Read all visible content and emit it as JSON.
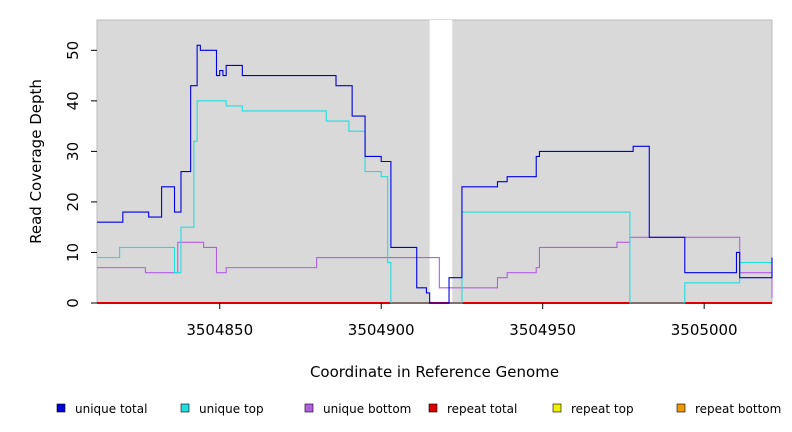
{
  "chart_data": {
    "type": "line",
    "step": true,
    "title": "",
    "xlabel": "Coordinate in Reference Genome",
    "ylabel": "Read Coverage Depth",
    "xlim": [
      3504812,
      3505021
    ],
    "ylim": [
      0,
      56
    ],
    "xticks": [
      3504850,
      3504900,
      3504950,
      3505000
    ],
    "yticks": [
      0,
      10,
      20,
      30,
      40,
      50
    ],
    "grid": false,
    "background": "#d9d9d9",
    "gap": [
      3504915,
      3504922
    ],
    "legend_position": "bottom",
    "series": [
      {
        "name": "unique total",
        "color": "#0000dd",
        "x": [
          3504812,
          3504820,
          3504826,
          3504828,
          3504832,
          3504836,
          3504838,
          3504841,
          3504843,
          3504844,
          3504849,
          3504850,
          3504851,
          3504852,
          3504857,
          3504886,
          3504891,
          3504895,
          3504900,
          3504903,
          3504911,
          3504914,
          3504915,
          3504921,
          3504925,
          3504936,
          3504939,
          3504948,
          3504949,
          3504976,
          3504978,
          3504983,
          3504994,
          3505010,
          3505011,
          3505021
        ],
        "y": [
          16,
          18,
          18,
          17,
          23,
          18,
          26,
          43,
          51,
          50,
          45,
          46,
          45,
          47,
          45,
          43,
          37,
          29,
          28,
          11,
          3,
          2,
          0,
          5,
          23,
          24,
          25,
          29,
          30,
          30,
          31,
          13,
          6,
          10,
          5,
          9
        ]
      },
      {
        "name": "unique top",
        "color": "#22dddd",
        "x": [
          3504812,
          3504819,
          3504832,
          3504836,
          3504838,
          3504842,
          3504843,
          3504852,
          3504857,
          3504883,
          3504890,
          3504895,
          3504900,
          3504902,
          3504925,
          3504977,
          3504994,
          3505011,
          3505021
        ],
        "y": [
          9,
          11,
          11,
          6,
          15,
          32,
          40,
          39,
          38,
          36,
          34,
          26,
          25,
          8,
          18,
          0,
          4,
          8,
          8
        ],
        "break_at": 3504903
      },
      {
        "name": "unique bottom",
        "color": "#b25ee2",
        "x": [
          3504812,
          3504825,
          3504827,
          3504837,
          3504845,
          3504849,
          3504852,
          3504880,
          3504889,
          3504918,
          3504936,
          3504939,
          3504948,
          3504949,
          3504973,
          3504977,
          3504983,
          3505011,
          3505021
        ],
        "y": [
          7,
          7,
          6,
          12,
          11,
          6,
          7,
          9,
          9,
          3,
          5,
          6,
          7,
          11,
          12,
          13,
          13,
          6,
          1
        ]
      },
      {
        "name": "repeat total",
        "color": "#dd0000",
        "x": [
          3504812,
          3505021
        ],
        "y": [
          0,
          0
        ]
      },
      {
        "name": "repeat top",
        "color": "#eeee00",
        "x": [
          3504812,
          3505021
        ],
        "y": [
          0,
          0
        ]
      },
      {
        "name": "repeat bottom",
        "color": "#ee9900",
        "x": [
          3504812,
          3505021
        ],
        "y": [
          0,
          0
        ]
      }
    ]
  }
}
